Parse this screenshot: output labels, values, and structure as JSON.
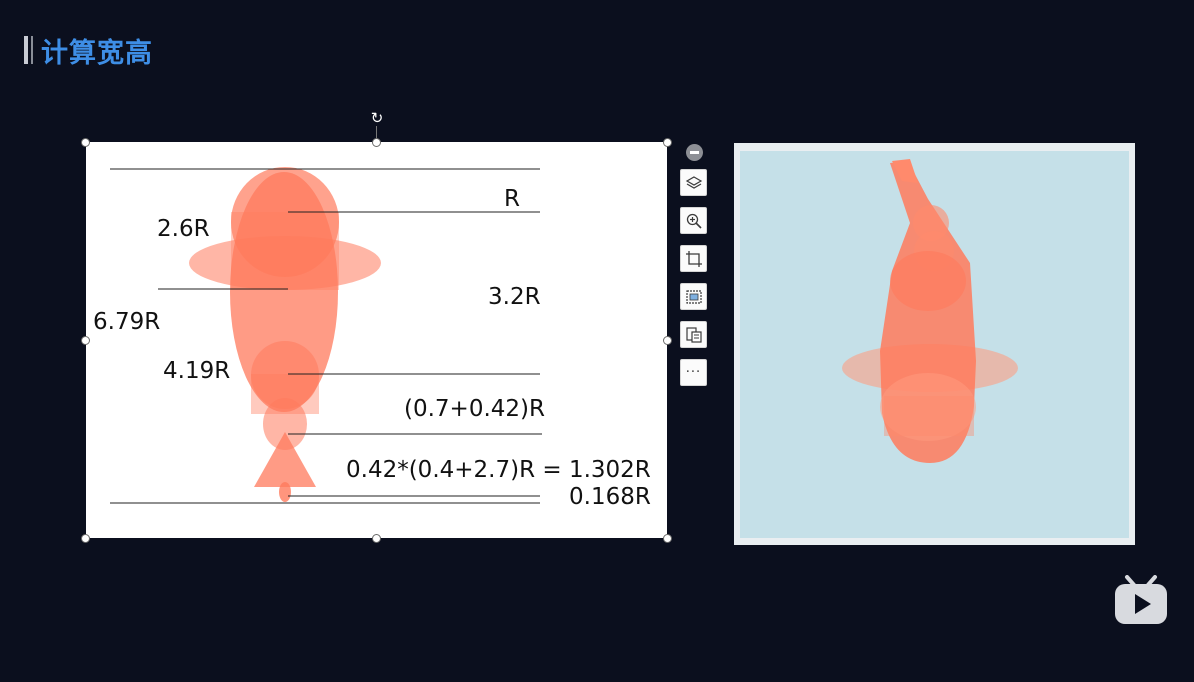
{
  "header": {
    "title": "计算宽高"
  },
  "diagram": {
    "labels": {
      "r": "R",
      "l_26": "2.6R",
      "l_32": "3.2R",
      "l_679": "6.79R",
      "l_419": "4.19R",
      "l_sum": "(0.7+0.42)R",
      "l_calc": "0.42*(0.4+2.7)R = 1.302R",
      "l_0168": "0.168R"
    }
  },
  "toolbar": {
    "items": [
      {
        "name": "collapse-button",
        "icon": "minus-circle-icon"
      },
      {
        "name": "layers-button",
        "icon": "layers-icon"
      },
      {
        "name": "zoom-button",
        "icon": "zoom-in-icon"
      },
      {
        "name": "crop-button",
        "icon": "crop-icon"
      },
      {
        "name": "replace-image-button",
        "icon": "image-frame-icon"
      },
      {
        "name": "image-to-text-button",
        "icon": "document-image-icon"
      },
      {
        "name": "more-button",
        "icon": "ellipsis-icon",
        "label": "···"
      }
    ],
    "more_label": "···"
  },
  "colors": {
    "background": "#0b0f1e",
    "title": "#3e8ee6",
    "koi": "#ff7a5c",
    "pond": "#c5e0e8"
  }
}
